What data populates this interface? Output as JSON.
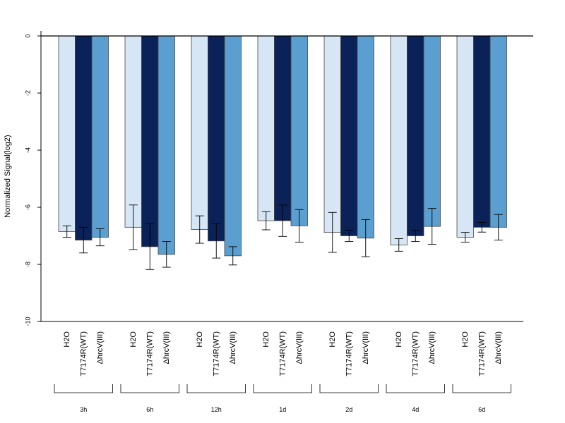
{
  "chart_data": {
    "type": "bar",
    "ylabel": "Normalized Signal(log2)",
    "ylim": [
      -10,
      0
    ],
    "yticks": [
      0,
      -2,
      -4,
      -6,
      -8,
      -10
    ],
    "groups": [
      "3h",
      "6h",
      "12h",
      "1d",
      "2d",
      "4d",
      "6d"
    ],
    "series": [
      {
        "name": "H2O",
        "color": "#d6e6f5",
        "values": [
          -6.85,
          -6.7,
          -6.78,
          -6.47,
          -6.88,
          -7.32,
          -7.05
        ],
        "errors": [
          0.2,
          0.78,
          0.48,
          0.32,
          0.7,
          0.22,
          0.17
        ]
      },
      {
        "name": "T7174R(WT)",
        "color": "#0a2258",
        "values": [
          -7.15,
          -7.38,
          -7.18,
          -6.47,
          -7.0,
          -7.0,
          -6.7
        ],
        "errors": [
          0.45,
          0.8,
          0.6,
          0.55,
          0.2,
          0.2,
          0.17
        ]
      },
      {
        "name": "ΔhrcV(III)",
        "color": "#5a9fcf",
        "values": [
          -7.05,
          -7.65,
          -7.7,
          -6.65,
          -7.08,
          -6.67,
          -6.7
        ],
        "errors": [
          0.3,
          0.45,
          0.32,
          0.57,
          0.65,
          0.63,
          0.45
        ]
      }
    ]
  }
}
